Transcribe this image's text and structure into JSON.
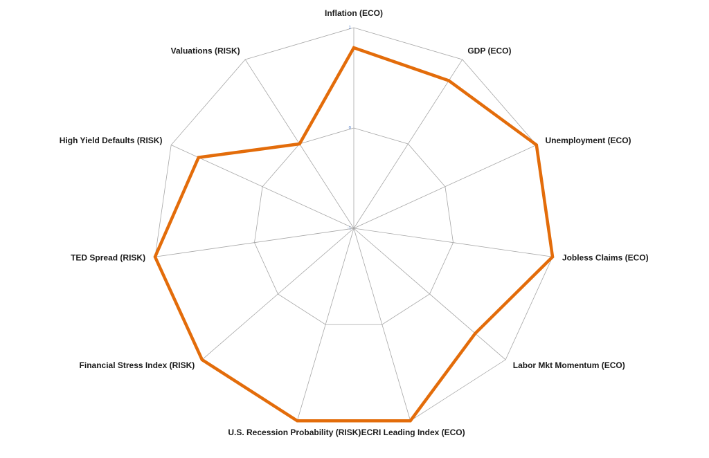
{
  "chart_data": {
    "type": "radar",
    "categories": [
      "Inflation (ECO)",
      "GDP (ECO)",
      "Unemployment (ECO)",
      "Jobless Claims (ECO)",
      "Labor Mkt Momentum (ECO)",
      "ECRI Leading Index (ECO)",
      "U.S. Recession Probability (RISK)",
      "Financial Stress Index (RISK)",
      "TED Spread (RISK)",
      "High Yield Defaults (RISK)",
      "Valuations (RISK)"
    ],
    "values": [
      0.8,
      0.75,
      1.0,
      1.0,
      0.6,
      1.0,
      1.0,
      1.0,
      1.0,
      0.7,
      0
    ],
    "color": "#e36c0a",
    "ylim": [
      -1,
      1
    ],
    "yticks": [
      -1,
      0,
      1
    ],
    "grid": true
  }
}
